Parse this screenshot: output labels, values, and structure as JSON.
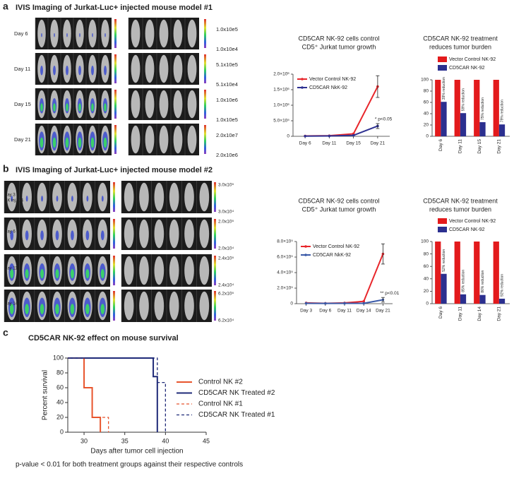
{
  "panel_labels": [
    "a",
    "b",
    "c"
  ],
  "ivis": [
    {
      "title": "IVIS Imaging of Jurkat-Luc+ injected mouse model #1",
      "rows": [
        {
          "day": [
            "Day 6"
          ],
          "scale": [
            "1.0x10e5",
            "1.0x10e4"
          ]
        },
        {
          "day": [
            "Day 11"
          ],
          "scale": [
            "5.1x10e5",
            "5.1x10e4"
          ]
        },
        {
          "day": [
            "Day 15"
          ],
          "scale": [
            "1.0x10e6",
            "1.0x10e5"
          ]
        },
        {
          "day": [
            "Day 21"
          ],
          "scale": [
            "2.0x10e7",
            "2.0x10e6"
          ]
        }
      ]
    },
    {
      "title": "IVIS Imaging of Jurkat-Luc+ injected mouse model #2",
      "rows": [
        {
          "day": [
            "Day 3",
            "NK inj. D4"
          ],
          "scale": [
            "3.0x10⁵",
            "3.0x10⁴"
          ]
        },
        {
          "day": [
            "Day 6"
          ],
          "scale": [
            "2.0x10⁵",
            "2.0x10⁴"
          ]
        },
        {
          "day": [
            "Day 11"
          ],
          "scale": [
            "2.4x10⁵",
            "2.4x10⁴"
          ]
        },
        {
          "day": [
            "Day 14"
          ],
          "scale": [
            "6.2x10⁵",
            "6.2x10⁴"
          ]
        }
      ]
    }
  ],
  "chart_data": [
    {
      "type": "line",
      "title": [
        "CD5CAR NK-92 cells control",
        "CD5⁺ Jurkat tumor growth"
      ],
      "categories": [
        "Day 6",
        "Day 11",
        "Day 15",
        "Day 21"
      ],
      "ylim": [
        0,
        2000000
      ],
      "yticks": [
        0,
        {
          "value": 500000,
          "label": "5.0×10⁵"
        },
        {
          "value": 1000000,
          "label": "1.0×10⁶"
        },
        {
          "value": 1500000,
          "label": "1.5×10⁶"
        },
        {
          "value": 2000000,
          "label": "2.0×10⁶"
        }
      ],
      "series": [
        {
          "name": "Vector Control NK-92",
          "color": "#e8262b",
          "values": [
            10000,
            20000,
            80000,
            1600000
          ],
          "errors": [
            0,
            0,
            0,
            350000
          ]
        },
        {
          "name": "CD5CAR NkK-92",
          "color": "#2e3192",
          "values": [
            5000,
            10000,
            30000,
            330000
          ],
          "errors": [
            0,
            0,
            0,
            80000
          ]
        }
      ],
      "annotation": "* p<0.05"
    },
    {
      "type": "bar",
      "title": [
        "CD5CAR NK-92 treatment",
        "reduces tumor burden"
      ],
      "categories": [
        "Day 6",
        "Day 11",
        "Day 15",
        "Day 21"
      ],
      "ylim": [
        0,
        100
      ],
      "yticks": [
        0,
        20,
        40,
        60,
        80,
        100
      ],
      "series": [
        {
          "name": "Vector Control NK-92",
          "color": "#e31a1c",
          "values": [
            100,
            100,
            100,
            100
          ]
        },
        {
          "name": "CD5CAR NK-92",
          "color": "#2b2f8f",
          "values": [
            61,
            41,
            25,
            21
          ]
        }
      ],
      "annotations": [
        "39% reduction",
        "59% reduction",
        "75% reduction",
        "79% reduction"
      ]
    },
    {
      "type": "line",
      "title": [
        "CD5CAR NK-92 cells control",
        "CD5⁺ Jurkat tumor growth"
      ],
      "categories": [
        "Day 3",
        "Day 6",
        "Day 11",
        "Day 14",
        "Day 21"
      ],
      "ylim": [
        0,
        800000
      ],
      "yticks": [
        0,
        {
          "value": 200000,
          "label": "2.0×10⁵"
        },
        {
          "value": 400000,
          "label": "4.0×10⁵"
        },
        {
          "value": 600000,
          "label": "6.0×10⁵"
        },
        {
          "value": 800000,
          "label": "8.0×10⁵"
        }
      ],
      "series": [
        {
          "name": "Vector Control NK-92",
          "color": "#e8262b",
          "values": [
            10000,
            5000,
            10000,
            30000,
            640000
          ],
          "errors": [
            0,
            0,
            0,
            0,
            130000
          ]
        },
        {
          "name": "CD5CAR NkK-92",
          "color": "#3a5aa8",
          "values": [
            5000,
            3000,
            5000,
            5000,
            50000
          ],
          "errors": [
            0,
            0,
            0,
            0,
            30000
          ]
        }
      ],
      "annotation": "** p<0.01"
    },
    {
      "type": "bar",
      "title": [
        "CD5CAR NK-92 treatment",
        "reduces tumor burden"
      ],
      "categories": [
        "Day 6",
        "Day 11",
        "Day 14",
        "Day 21"
      ],
      "ylim": [
        0,
        100
      ],
      "yticks": [
        0,
        20,
        40,
        60,
        80,
        100
      ],
      "series": [
        {
          "name": "Vector Control NK-92",
          "color": "#e31a1c",
          "values": [
            100,
            100,
            100,
            100
          ]
        },
        {
          "name": "CD5CAR NK-92",
          "color": "#2b2f8f",
          "values": [
            48,
            15,
            14,
            8
          ]
        }
      ],
      "annotations": [
        "52% reduction",
        "85% reduction",
        "86% reduction",
        "92% reduction"
      ]
    },
    {
      "type": "survival",
      "title": "CD5CAR NK-92 effect on mouse survival",
      "xlabel": "Days after tumor cell injection",
      "ylabel": "Percent survival",
      "xlim": [
        28,
        45
      ],
      "xticks": [
        30,
        35,
        40,
        45
      ],
      "ylim": [
        0,
        100
      ],
      "yticks": [
        0,
        20,
        40,
        60,
        80,
        100
      ],
      "series": [
        {
          "name": "Control NK #2",
          "color": "#e8552d",
          "dashed": false,
          "x": [
            28,
            30,
            31,
            32
          ],
          "values": [
            100,
            60,
            20,
            0
          ]
        },
        {
          "name": "CD5CAR NK Treated #2",
          "color": "#1f2a78",
          "dashed": false,
          "x": [
            28,
            38.5,
            39
          ],
          "values": [
            100,
            75,
            0
          ]
        },
        {
          "name": "Control NK #1",
          "color": "#e8552d",
          "dashed": true,
          "x": [
            28,
            30,
            31,
            33
          ],
          "values": [
            100,
            60,
            20,
            0
          ]
        },
        {
          "name": "CD5CAR NK Treated #1",
          "color": "#1f2a78",
          "dashed": true,
          "x": [
            28,
            39,
            40
          ],
          "values": [
            100,
            67,
            0
          ]
        }
      ],
      "footnote": "p-value < 0.01 for both treatment groups against their respective controls"
    }
  ]
}
